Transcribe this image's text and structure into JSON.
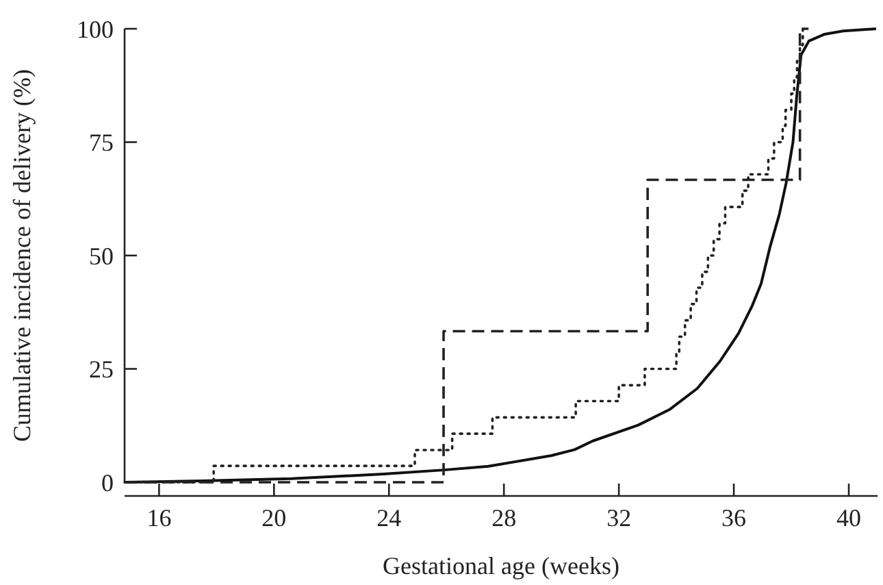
{
  "chart_data": {
    "type": "line",
    "xlabel": "Gestational age (weeks)",
    "ylabel": "Cumulative incidence of delivery (%)",
    "xlim": [
      14.8,
      41
    ],
    "ylim": [
      0,
      100
    ],
    "xticks": [
      16,
      20,
      24,
      28,
      32,
      36,
      40
    ],
    "yticks": [
      0,
      25,
      50,
      75,
      100
    ],
    "grid": false,
    "marker": "none",
    "series": [
      {
        "line_style": "solid",
        "color": "#111111",
        "x": [
          14.8,
          17.5,
          20.6,
          23.8,
          25.9,
          27.45,
          28.56,
          29.66,
          30.46,
          31.09,
          32.67,
          33.78,
          34.73,
          35.52,
          36.16,
          36.63,
          36.95,
          37.26,
          37.58,
          37.82,
          38.06,
          38.19,
          38.34,
          38.61,
          39.16,
          39.8,
          40.95
        ],
        "values": [
          0,
          0.3,
          0.8,
          1.8,
          2.7,
          3.5,
          4.7,
          5.9,
          7.2,
          9.1,
          12.6,
          16.1,
          20.7,
          26.7,
          32.8,
          38.8,
          43.8,
          51.9,
          59,
          66,
          75.1,
          85.2,
          94.2,
          97.3,
          98.8,
          99.5,
          100
        ]
      },
      {
        "type": "step",
        "line_style": "dashed",
        "color": "#222222",
        "x": [
          14.8,
          25.9,
          33.0,
          38.3,
          38.6
        ],
        "values": [
          0,
          33.3,
          66.7,
          100,
          100
        ]
      },
      {
        "type": "step",
        "line_style": "dotted",
        "color": "#222222",
        "x": [
          14.8,
          17.9,
          24.9,
          26.2,
          27.6,
          30.5,
          32.0,
          32.9,
          34.0,
          34.1,
          34.3,
          34.5,
          34.7,
          34.9,
          35.1,
          35.3,
          35.5,
          35.7,
          36.3,
          36.5,
          37.2,
          37.4,
          37.7,
          37.8,
          38.0,
          38.1,
          38.2,
          38.3,
          38.4
        ],
        "values": [
          0,
          3.6,
          7.1,
          10.7,
          14.3,
          17.9,
          21.4,
          25,
          28.6,
          32.1,
          35.7,
          39.3,
          42.9,
          46.4,
          50,
          53.6,
          57.1,
          60.7,
          64.3,
          67.9,
          71.4,
          75,
          78.6,
          82.1,
          85.7,
          89.3,
          92.9,
          96.4,
          100
        ]
      }
    ]
  }
}
